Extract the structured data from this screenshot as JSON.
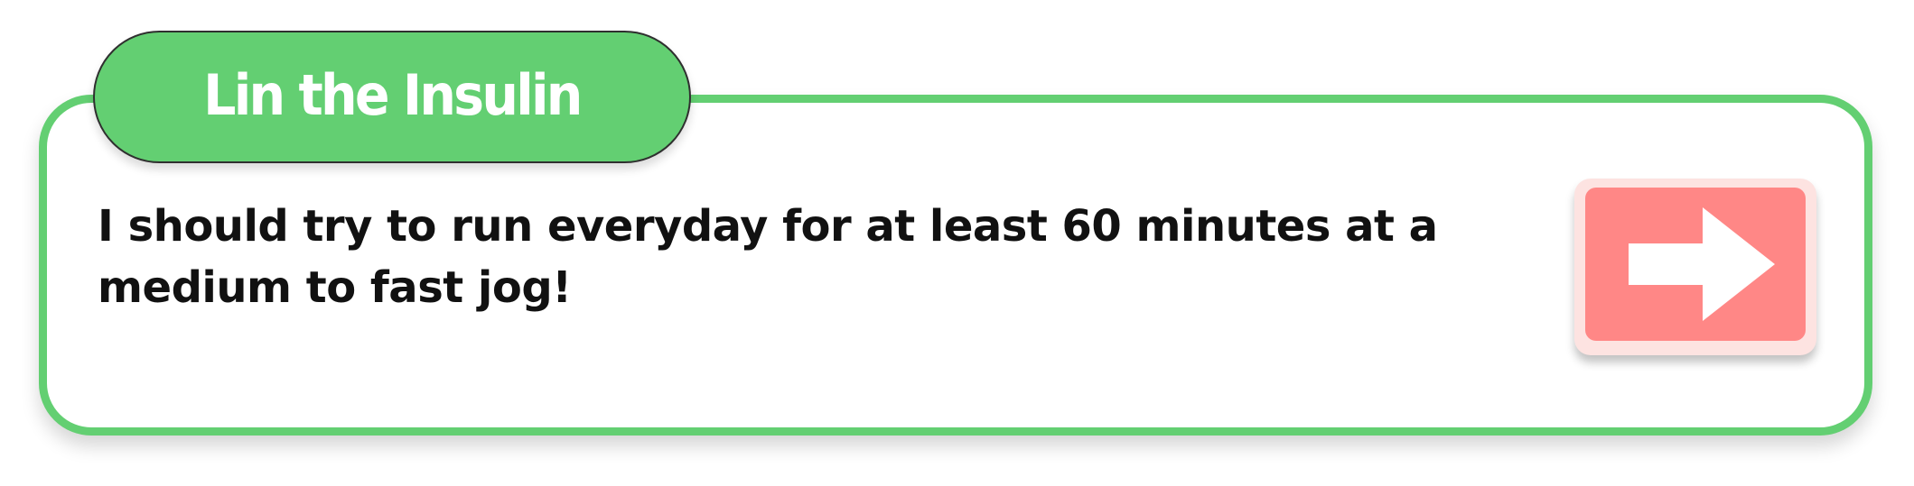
{
  "dialog": {
    "speaker": "Lin the Insulin",
    "message": "I should try to run everyday for at least 60 minutes at a medium to fast jog!",
    "next_icon": "arrow-right-icon"
  },
  "colors": {
    "accent_green": "#63cf72",
    "button_red": "#ff8786",
    "button_border": "#fde3e1",
    "text": "#111111"
  }
}
